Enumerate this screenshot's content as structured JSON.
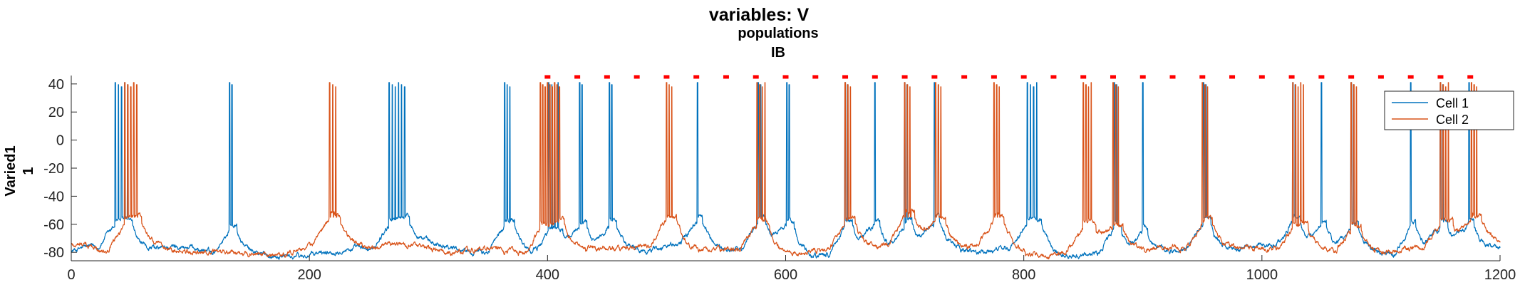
{
  "chart_data": {
    "type": "line",
    "title": "variables: V",
    "subtitle": "populations",
    "subtitle2": "IB",
    "ylabel_line1": "Varied1",
    "ylabel_line2": "1",
    "xlim": [
      0,
      1200
    ],
    "ylim": [
      -86,
      46
    ],
    "xticks": [
      0,
      200,
      400,
      600,
      800,
      1000,
      1200
    ],
    "yticks": [
      40,
      20,
      0,
      -20,
      -40,
      -60,
      -80
    ],
    "legend_position": "top-right",
    "colors": {
      "cell1": "#0072BD",
      "cell2": "#D95319",
      "marker": "#FF0000",
      "axis": "#262626"
    },
    "series": [
      {
        "name": "Cell 1",
        "color": "#0072BD",
        "baseline": -79,
        "bursts": [
          {
            "t": 37,
            "n": 5,
            "isi": 2.6
          },
          {
            "t": 133,
            "n": 2,
            "isi": 2.0
          },
          {
            "t": 267,
            "n": 6,
            "isi": 2.6
          },
          {
            "t": 364,
            "n": 3,
            "isi": 2.2
          },
          {
            "t": 401,
            "n": 4,
            "isi": 2.6
          },
          {
            "t": 427,
            "n": 2,
            "isi": 2.0
          },
          {
            "t": 452,
            "n": 2,
            "isi": 2.0
          },
          {
            "t": 526,
            "n": 1,
            "isi": 2.0
          },
          {
            "t": 577,
            "n": 2,
            "isi": 2.0
          },
          {
            "t": 601,
            "n": 2,
            "isi": 2.0
          },
          {
            "t": 650,
            "n": 2,
            "isi": 2.0
          },
          {
            "t": 675,
            "n": 1,
            "isi": 2.0
          },
          {
            "t": 700,
            "n": 2,
            "isi": 2.0
          },
          {
            "t": 725,
            "n": 1,
            "isi": 2.0
          },
          {
            "t": 803,
            "n": 4,
            "isi": 2.6
          },
          {
            "t": 876,
            "n": 2,
            "isi": 2.0
          },
          {
            "t": 900,
            "n": 1,
            "isi": 2.0
          },
          {
            "t": 951,
            "n": 2,
            "isi": 2.0
          },
          {
            "t": 1026,
            "n": 2,
            "isi": 2.0
          },
          {
            "t": 1050,
            "n": 1,
            "isi": 2.0
          },
          {
            "t": 1075,
            "n": 2,
            "isi": 2.0
          },
          {
            "t": 1125,
            "n": 1,
            "isi": 2.0
          },
          {
            "t": 1150,
            "n": 2,
            "isi": 2.0
          },
          {
            "t": 1174,
            "n": 1,
            "isi": 2.0
          }
        ]
      },
      {
        "name": "Cell 2",
        "color": "#D95319",
        "baseline": -78,
        "bursts": [
          {
            "t": 45,
            "n": 5,
            "isi": 2.5
          },
          {
            "t": 217,
            "n": 3,
            "isi": 2.6
          },
          {
            "t": 394,
            "n": 9,
            "isi": 2.0
          },
          {
            "t": 500,
            "n": 3,
            "isi": 2.2
          },
          {
            "t": 576,
            "n": 4,
            "isi": 2.2
          },
          {
            "t": 650,
            "n": 3,
            "isi": 2.2
          },
          {
            "t": 700,
            "n": 3,
            "isi": 2.2
          },
          {
            "t": 726,
            "n": 3,
            "isi": 2.2
          },
          {
            "t": 775,
            "n": 3,
            "isi": 2.2
          },
          {
            "t": 850,
            "n": 4,
            "isi": 2.2
          },
          {
            "t": 875,
            "n": 3,
            "isi": 2.2
          },
          {
            "t": 950,
            "n": 3,
            "isi": 2.2
          },
          {
            "t": 1026,
            "n": 5,
            "isi": 2.2
          },
          {
            "t": 1075,
            "n": 3,
            "isi": 2.2
          },
          {
            "t": 1150,
            "n": 4,
            "isi": 2.2
          },
          {
            "t": 1176,
            "n": 3,
            "isi": 2.2
          }
        ]
      }
    ],
    "stimulus_markers": {
      "y": 45,
      "times": [
        400,
        425,
        450,
        475,
        500,
        525,
        550,
        575,
        600,
        625,
        650,
        675,
        700,
        725,
        750,
        775,
        800,
        825,
        850,
        875,
        900,
        925,
        950,
        975,
        1000,
        1025,
        1050,
        1075,
        1100,
        1125,
        1150,
        1175
      ]
    }
  },
  "legend": {
    "items": [
      "Cell 1",
      "Cell 2"
    ]
  }
}
